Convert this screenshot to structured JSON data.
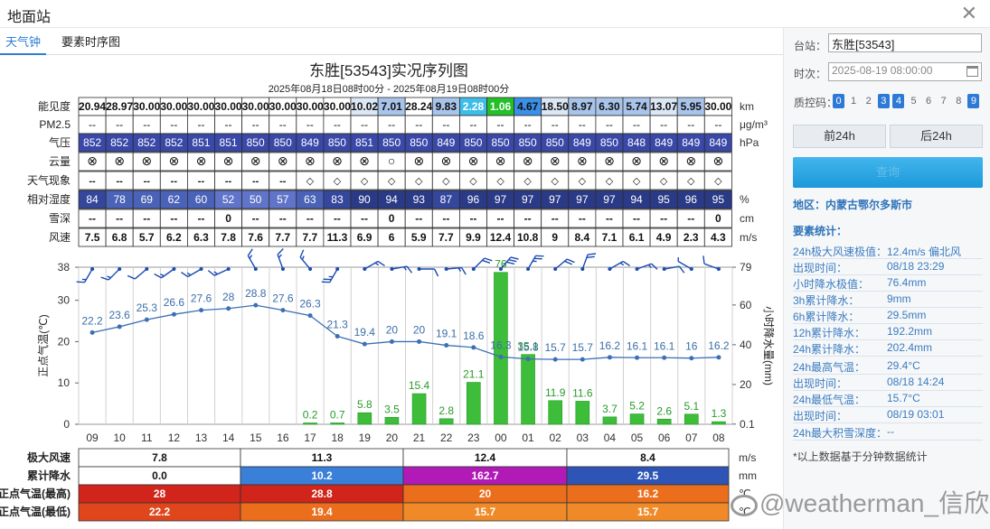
{
  "window": {
    "title": "地面站"
  },
  "tabs": [
    {
      "label": "天气钟"
    },
    {
      "label": "要素时序图"
    }
  ],
  "chart_header": {
    "title": "东胜[53543]实况序列图",
    "subtitle": "2025年08月18日08时00分 - 2025年08月19日08时00分"
  },
  "hours": [
    "09",
    "10",
    "11",
    "12",
    "13",
    "14",
    "15",
    "16",
    "17",
    "18",
    "19",
    "20",
    "21",
    "22",
    "23",
    "00",
    "01",
    "02",
    "03",
    "04",
    "05",
    "06",
    "07",
    "08"
  ],
  "table": {
    "visibility": {
      "label": "能见度",
      "unit": "km",
      "values": [
        "20.94",
        "28.97",
        "30.00",
        "30.00",
        "30.00",
        "30.00",
        "30.00",
        "30.00",
        "30.00",
        "30.00",
        "10.02",
        "7.01",
        "28.24",
        "9.83",
        "2.28",
        "1.06",
        "4.67",
        "18.50",
        "8.97",
        "6.30",
        "5.74",
        "13.07",
        "5.95",
        "30.00"
      ]
    },
    "pm25": {
      "label": "PM2.5",
      "unit": "μg/m³",
      "placeholder": "--"
    },
    "pressure": {
      "label": "气压",
      "unit": "hPa",
      "values": [
        "852",
        "852",
        "852",
        "852",
        "851",
        "851",
        "850",
        "850",
        "849",
        "850",
        "851",
        "850",
        "850",
        "849",
        "850",
        "850",
        "850",
        "850",
        "849",
        "850",
        "848",
        "849",
        "849",
        "849"
      ]
    },
    "cloud": {
      "label": "云量",
      "symbols": [
        "⊗",
        "⊗",
        "⊗",
        "⊗",
        "⊗",
        "⊗",
        "⊗",
        "⊗",
        "⊗",
        "⊗",
        "⊗",
        "○",
        "⊗",
        "⊗",
        "⊗",
        "⊗",
        "⊗",
        "⊗",
        "⊗",
        "⊗",
        "⊗",
        "⊗",
        "⊗",
        "⊗"
      ]
    },
    "weather": {
      "label": "天气现象",
      "symbols": [
        "--",
        "--",
        "--",
        "--",
        "--",
        "--",
        "--",
        "--",
        "◇",
        "◇",
        "◇",
        "◇",
        "◇",
        "◇",
        "◇",
        "◇",
        "◇",
        "◇",
        "◇",
        "◇",
        "◇",
        "◇",
        "◇",
        "◇"
      ]
    },
    "humidity": {
      "label": "相对湿度",
      "unit": "%",
      "values": [
        "84",
        "78",
        "69",
        "62",
        "60",
        "52",
        "50",
        "57",
        "63",
        "83",
        "90",
        "94",
        "93",
        "87",
        "96",
        "97",
        "97",
        "97",
        "97",
        "97",
        "94",
        "95",
        "96",
        "95"
      ]
    },
    "snow": {
      "label": "雪深",
      "unit": "cm",
      "values": [
        "--",
        "--",
        "--",
        "--",
        "--",
        "0",
        "--",
        "--",
        "--",
        "--",
        "--",
        "0",
        "--",
        "--",
        "--",
        "--",
        "--",
        "--",
        "--",
        "--",
        "--",
        "--",
        "--",
        "0"
      ]
    },
    "wind": {
      "label": "风速",
      "unit": "m/s",
      "values": [
        "7.5",
        "6.8",
        "5.7",
        "6.2",
        "6.3",
        "7.8",
        "7.6",
        "7.7",
        "7.7",
        "11.3",
        "6.9",
        "6",
        "5.9",
        "7.7",
        "9.9",
        "12.4",
        "10.8",
        "9",
        "8.4",
        "7.1",
        "6.1",
        "4.9",
        "2.3",
        "4.3"
      ]
    }
  },
  "chart_data": {
    "type": "line",
    "categories": [
      "09",
      "10",
      "11",
      "12",
      "13",
      "14",
      "15",
      "16",
      "17",
      "18",
      "19",
      "20",
      "21",
      "22",
      "23",
      "00",
      "01",
      "02",
      "03",
      "04",
      "05",
      "06",
      "07",
      "08"
    ],
    "xlabel": "",
    "y_left": {
      "label": "正点气温(℃)",
      "ylim": [
        0,
        38
      ],
      "ticks": [
        0,
        10,
        20,
        30,
        38
      ]
    },
    "y_right": {
      "label": "小时降水量(mm)",
      "ticks": [
        "0.1",
        "20",
        "40",
        "60",
        "79"
      ]
    },
    "series": [
      {
        "kind": "line",
        "color": "#3c6fb4",
        "values": [
          22.2,
          23.6,
          25.3,
          26.6,
          27.6,
          28,
          28.8,
          27.6,
          26.3,
          21.3,
          19.4,
          20,
          20,
          19.1,
          18.6,
          16.3,
          15.8,
          15.7,
          15.7,
          16.2,
          16.1,
          16.1,
          16,
          16.2
        ]
      },
      {
        "kind": "bar",
        "color": "#3dbd3a",
        "values": [
          null,
          null,
          null,
          null,
          null,
          null,
          null,
          null,
          0.2,
          0.7,
          5.8,
          3.5,
          15.4,
          2.8,
          21.1,
          76.4,
          35.1,
          11.9,
          11.6,
          3.7,
          5.2,
          2.6,
          5.1,
          1.3
        ]
      }
    ],
    "bar_labels": [
      "",
      "",
      "",
      "",
      "",
      "",
      "",
      "",
      "0.2",
      "0.7",
      "5.8",
      "3.5",
      "15.4",
      "2.8",
      "21.1",
      "76",
      "35.1",
      "11.9",
      "11.6",
      "3.7",
      "5.2",
      "2.6",
      "5.1",
      "1.3"
    ],
    "line_labels": [
      "22.2",
      "23.6",
      "25.3",
      "26.6",
      "27.6",
      "28",
      "28.8",
      "27.6",
      "26.3",
      "21.3",
      "19.4",
      "20",
      "20",
      "19.1",
      "18.6",
      "16.3",
      "15.8",
      "15.7",
      "15.7",
      "16.2",
      "16.1",
      "16.1",
      "16",
      "16.2"
    ],
    "wind_speed_ms": [
      7.5,
      6.8,
      5.7,
      6.2,
      6.3,
      7.8,
      7.6,
      7.7,
      7.7,
      11.3,
      6.9,
      6,
      5.9,
      7.7,
      9.9,
      12.4,
      10.8,
      9,
      8.4,
      7.1,
      6.1,
      4.9,
      2.3,
      4.3
    ],
    "wind_dir_deg": [
      210,
      225,
      230,
      235,
      240,
      245,
      330,
      340,
      320,
      210,
      60,
      80,
      90,
      85,
      45,
      40,
      30,
      50,
      20,
      60,
      70,
      80,
      300,
      290
    ]
  },
  "summary": {
    "gust": {
      "label": "极大风速",
      "unit": "m/s",
      "values": [
        "7.8",
        "11.3",
        "12.4",
        "8.4"
      ]
    },
    "precip": {
      "label": "累计降水",
      "unit": "mm",
      "values": [
        "0.0",
        "10.2",
        "162.7",
        "29.5"
      ],
      "colors": [
        "#ffffff",
        "#3a7fd8",
        "#b21ab8",
        "#2e55b5"
      ]
    },
    "tmax": {
      "label": "正点气温(最高)",
      "unit": "℃",
      "values": [
        "28",
        "28.8",
        "20",
        "16.2"
      ],
      "colors": [
        "#d1241a",
        "#d1241a",
        "#eb6e1c",
        "#eb6e1c"
      ]
    },
    "tmin": {
      "label": "正点气温(最低)",
      "unit": "℃",
      "values": [
        "22.2",
        "19.4",
        "15.7",
        "15.7"
      ],
      "colors": [
        "#e0461c",
        "#eb6e1c",
        "#f08a28",
        "#f08a28"
      ]
    }
  },
  "panel": {
    "station_label": "台站：",
    "station_value": "东胜[53543]",
    "time_label": "时次：",
    "time_value": "2025-08-19 08:00:00",
    "qc_label": "质控码：",
    "qc_codes": [
      "0",
      "1",
      "2",
      "3",
      "4",
      "5",
      "6",
      "7",
      "8",
      "9"
    ],
    "qc_selected": [
      "0",
      "3",
      "4",
      "9"
    ],
    "prev_label": "前24h",
    "next_label": "后24h",
    "query_label": "查询",
    "region": "地区：内蒙古鄂尔多斯市",
    "stats_head": "要素统计：",
    "stats": [
      {
        "k": "24h极大风速极值：",
        "v": "12.4m/s 偏北风"
      },
      {
        "k": "出现时间：",
        "v": "08/18 23:29"
      },
      {
        "k": "小时降水极值：",
        "v": "76.4mm"
      },
      {
        "k": "3h累计降水：",
        "v": "9mm"
      },
      {
        "k": "6h累计降水：",
        "v": "29.5mm"
      },
      {
        "k": "12h累计降水：",
        "v": "192.2mm"
      },
      {
        "k": "24h累计降水：",
        "v": "202.4mm"
      },
      {
        "k": "24h最高气温：",
        "v": "29.4°C"
      },
      {
        "k": "出现时间：",
        "v": "08/18 14:24"
      },
      {
        "k": "24h最低气温：",
        "v": "15.7°C"
      },
      {
        "k": "出现时间：",
        "v": "08/19 03:01"
      },
      {
        "k": "24h最大积雪深度：",
        "v": "--"
      }
    ],
    "note": "*以上数据基于分钟数据统计"
  },
  "watermark": "@weatherman_信欣",
  "colors": {
    "accent": "#2b7fd4",
    "line": "#3c6fb4",
    "bar": "#3dbd3a",
    "barOutline": "#1f9a1f"
  }
}
